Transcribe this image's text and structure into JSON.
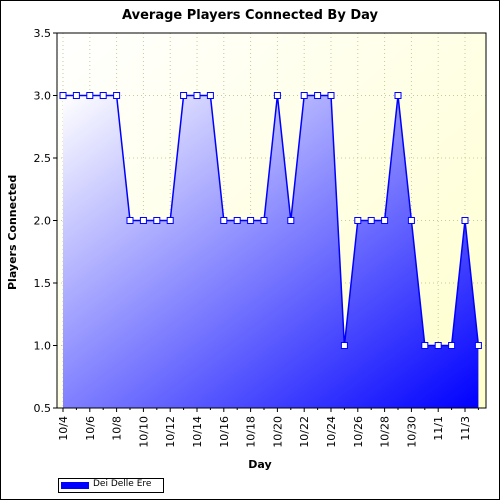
{
  "chart_data": {
    "type": "area",
    "title": "Average Players Connected By Day",
    "xlabel": "Day",
    "ylabel": "Players Connected",
    "ylim": [
      0.5,
      3.5
    ],
    "yticks": [
      "0.5",
      "1.0",
      "1.5",
      "2.0",
      "2.5",
      "3.0",
      "3.5"
    ],
    "xtick_labels": [
      "10/4",
      "10/6",
      "10/8",
      "10/10",
      "10/12",
      "10/14",
      "10/16",
      "10/18",
      "10/20",
      "10/22",
      "10/24",
      "10/26",
      "10/28",
      "10/30",
      "11/1",
      "11/3"
    ],
    "x": [
      "10/4",
      "10/5",
      "10/6",
      "10/7",
      "10/8",
      "10/9",
      "10/10",
      "10/11",
      "10/12",
      "10/13",
      "10/14",
      "10/15",
      "10/16",
      "10/17",
      "10/18",
      "10/19",
      "10/20",
      "10/21",
      "10/22",
      "10/23",
      "10/24",
      "10/25",
      "10/26",
      "10/27",
      "10/28",
      "10/29",
      "10/30",
      "10/31",
      "11/1",
      "11/2",
      "11/3",
      "11/4"
    ],
    "series": [
      {
        "name": "Dei Delle Ere",
        "values": [
          3,
          3,
          3,
          3,
          3,
          2,
          2,
          2,
          2,
          3,
          3,
          3,
          2,
          2,
          2,
          2,
          3,
          2,
          3,
          3,
          3,
          1,
          2,
          2,
          2,
          3,
          2,
          1,
          1,
          1,
          2,
          1
        ]
      }
    ],
    "grid": true,
    "legend_position": "bottom-left",
    "colors": {
      "line": "#0000ff",
      "fill_light": "#ffffff",
      "fill_dark": "#0000ff",
      "plot_bg_top": "#ffffd0",
      "plot_bg_bottom": "#ffffff",
      "grid": "#c8c8a0"
    }
  }
}
